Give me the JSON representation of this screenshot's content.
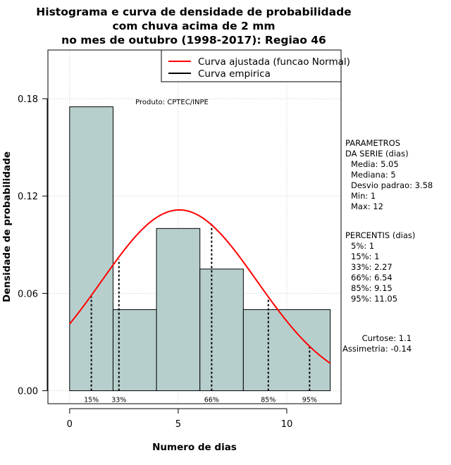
{
  "chart_data": {
    "type": "bar",
    "title_lines": [
      "Histograma e curva de densidade de probabilidade",
      "com chuva acima de 2 mm",
      "no mes de outubro (1998-2017): Regiao 46"
    ],
    "xlabel": "Numero de dias",
    "ylabel": "Densidade de probabilidade",
    "xlim": [
      -1,
      12.5
    ],
    "ylim": [
      -0.008,
      0.21
    ],
    "x_ticks": [
      0,
      5,
      10
    ],
    "y_ticks": [
      "0.00",
      "0.06",
      "0.12",
      "0.18"
    ],
    "grid": true,
    "bin_edges": [
      0,
      2,
      4,
      6,
      8,
      12
    ],
    "bins": [
      {
        "x0": 0,
        "x1": 2,
        "density": 0.175
      },
      {
        "x0": 2,
        "x1": 4,
        "density": 0.05
      },
      {
        "x0": 4,
        "x1": 6,
        "density": 0.1
      },
      {
        "x0": 6,
        "x1": 8,
        "density": 0.075
      },
      {
        "x0": 8,
        "x1": 12,
        "density": 0.05
      }
    ],
    "bar_color": "#b6cfcd",
    "normal_fit": {
      "mean": 5.05,
      "sd": 3.58,
      "x_range": [
        0,
        12
      ],
      "color": "#ff0000"
    },
    "percentile_markers": [
      {
        "label": "15%",
        "x": 1.0,
        "y": 0.058
      },
      {
        "label": "33%",
        "x": 2.27,
        "y": 0.081
      },
      {
        "label": "66%",
        "x": 6.54,
        "y": 0.103
      },
      {
        "label": "85%",
        "x": 9.15,
        "y": 0.057
      },
      {
        "label": "95%",
        "x": 11.05,
        "y": 0.028
      }
    ],
    "legend": {
      "position": "top-right",
      "entries": [
        {
          "label": "Curva ajustada (funcao Normal)",
          "color": "#ff0000"
        },
        {
          "label": "Curva empirica",
          "color": "#000000"
        }
      ]
    },
    "annotation": "Produto: CPTEC/INPE"
  },
  "side_panel": {
    "params_header": [
      "PARAMETROS",
      "DA SERIE (dias)"
    ],
    "params": [
      "Media: 5.05",
      "Mediana: 5",
      "Desvio padrao: 3.58",
      "Min: 1",
      "Max: 12"
    ],
    "percentis_header": "PERCENTIS (dias)",
    "percentis": [
      "5%: 1",
      "15%: 1",
      "33%: 2.27",
      "66%: 6.54",
      "85%: 9.15",
      "95%: 11.05"
    ],
    "moments": [
      "Curtose: 1.1",
      "Assimetria: -0.14"
    ]
  }
}
